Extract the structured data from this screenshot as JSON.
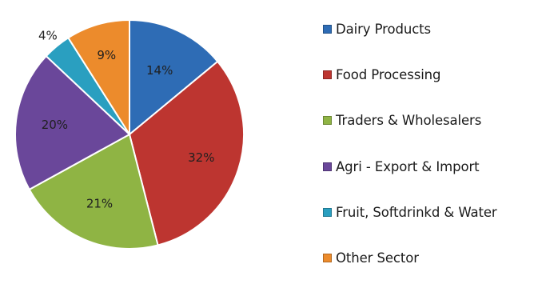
{
  "chart_data": {
    "type": "pie",
    "title": "",
    "start_angle_deg": 0,
    "direction": "clockwise",
    "legend_position": "right",
    "slices": [
      {
        "label": "Dairy Products",
        "value": 14,
        "display": "14%",
        "color": "#2e6cb5"
      },
      {
        "label": "Food Processing",
        "value": 32,
        "display": "32%",
        "color": "#bd3530"
      },
      {
        "label": "Traders & Wholesalers",
        "value": 21,
        "display": "21%",
        "color": "#8fb444"
      },
      {
        "label": "Agri - Export & Import",
        "value": 20,
        "display": "20%",
        "color": "#6a479a"
      },
      {
        "label": "Fruit, Softdrinkd & Water",
        "value": 4,
        "display": "4%",
        "color": "#2a9fc0"
      },
      {
        "label": "Other Sector",
        "value": 9,
        "display": "9%",
        "color": "#ec8b2c"
      }
    ]
  }
}
